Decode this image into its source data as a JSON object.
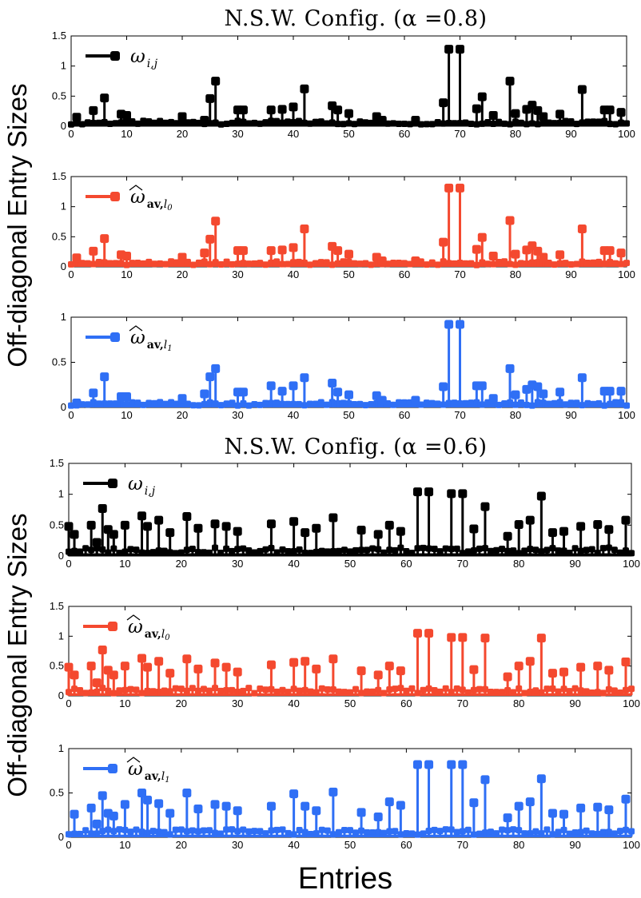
{
  "chart_data": [
    {
      "type": "stem",
      "title": "N.S.W. Config. (α =0.8)",
      "ylabel": "Off-diagonal Entry Sizes",
      "panels": [
        {
          "legend": {
            "base": "ω",
            "sub": "i,j",
            "hat": false,
            "bold": ""
          },
          "color": "#000000",
          "ylim": [
            0,
            1.5
          ],
          "yticks": [
            "0",
            "0.5",
            "1",
            "1.5"
          ],
          "ytick_values": [
            0,
            0.5,
            1,
            1.5
          ],
          "peaks": [
            [
              1,
              0.15
            ],
            [
              4,
              0.26
            ],
            [
              6,
              0.47
            ],
            [
              9,
              0.2
            ],
            [
              10,
              0.18
            ],
            [
              20,
              0.16
            ],
            [
              24,
              0.1
            ],
            [
              25,
              0.46
            ],
            [
              26,
              0.75
            ],
            [
              30,
              0.27
            ],
            [
              31,
              0.27
            ],
            [
              36,
              0.27
            ],
            [
              38,
              0.28
            ],
            [
              40,
              0.32
            ],
            [
              42,
              0.62
            ],
            [
              47,
              0.34
            ],
            [
              48,
              0.27
            ],
            [
              50,
              0.21
            ],
            [
              55,
              0.16
            ],
            [
              56,
              0.1
            ],
            [
              62,
              0.1
            ],
            [
              67,
              0.39
            ],
            [
              68,
              1.28
            ],
            [
              70,
              1.28
            ],
            [
              73,
              0.29
            ],
            [
              74,
              0.49
            ],
            [
              76,
              0.18
            ],
            [
              79,
              0.75
            ],
            [
              80,
              0.21
            ],
            [
              82,
              0.28
            ],
            [
              83,
              0.35
            ],
            [
              84,
              0.26
            ],
            [
              85,
              0.16
            ],
            [
              88,
              0.2
            ],
            [
              92,
              0.61
            ],
            [
              96,
              0.27
            ],
            [
              97,
              0.27
            ],
            [
              99,
              0.23
            ]
          ]
        },
        {
          "legend": {
            "base": "ω",
            "sub": "l0",
            "hat": true,
            "bold": "av"
          },
          "color": "#f4492f",
          "ylim": [
            0,
            1.5
          ],
          "yticks": [
            "0",
            "0.5",
            "1",
            "1.5"
          ],
          "ytick_values": [
            0,
            0.5,
            1,
            1.5
          ],
          "peaks": [
            [
              1,
              0.15
            ],
            [
              4,
              0.26
            ],
            [
              6,
              0.47
            ],
            [
              9,
              0.2
            ],
            [
              10,
              0.18
            ],
            [
              20,
              0.16
            ],
            [
              24,
              0.23
            ],
            [
              25,
              0.46
            ],
            [
              26,
              0.76
            ],
            [
              30,
              0.27
            ],
            [
              31,
              0.27
            ],
            [
              36,
              0.27
            ],
            [
              38,
              0.28
            ],
            [
              40,
              0.32
            ],
            [
              42,
              0.63
            ],
            [
              47,
              0.34
            ],
            [
              48,
              0.27
            ],
            [
              50,
              0.21
            ],
            [
              55,
              0.16
            ],
            [
              56,
              0.1
            ],
            [
              62,
              0.1
            ],
            [
              67,
              0.41
            ],
            [
              68,
              1.31
            ],
            [
              70,
              1.31
            ],
            [
              73,
              0.29
            ],
            [
              74,
              0.49
            ],
            [
              76,
              0.18
            ],
            [
              79,
              0.77
            ],
            [
              80,
              0.21
            ],
            [
              82,
              0.28
            ],
            [
              83,
              0.35
            ],
            [
              84,
              0.26
            ],
            [
              85,
              0.16
            ],
            [
              88,
              0.2
            ],
            [
              92,
              0.63
            ],
            [
              96,
              0.27
            ],
            [
              97,
              0.27
            ],
            [
              99,
              0.23
            ]
          ]
        },
        {
          "legend": {
            "base": "ω",
            "sub": "l1",
            "hat": true,
            "bold": "av"
          },
          "color": "#2f6ff5",
          "ylim": [
            0,
            1
          ],
          "yticks": [
            "0",
            "0.5",
            "1"
          ],
          "ytick_values": [
            0,
            0.5,
            1
          ],
          "peaks": [
            [
              1,
              0.05
            ],
            [
              4,
              0.16
            ],
            [
              6,
              0.34
            ],
            [
              9,
              0.12
            ],
            [
              10,
              0.12
            ],
            [
              20,
              0.1
            ],
            [
              24,
              0.15
            ],
            [
              25,
              0.34
            ],
            [
              26,
              0.43
            ],
            [
              30,
              0.17
            ],
            [
              31,
              0.17
            ],
            [
              36,
              0.24
            ],
            [
              38,
              0.18
            ],
            [
              40,
              0.24
            ],
            [
              42,
              0.33
            ],
            [
              47,
              0.27
            ],
            [
              48,
              0.17
            ],
            [
              50,
              0.14
            ],
            [
              55,
              0.13
            ],
            [
              56,
              0.08
            ],
            [
              62,
              0.08
            ],
            [
              67,
              0.23
            ],
            [
              68,
              0.92
            ],
            [
              70,
              0.92
            ],
            [
              73,
              0.24
            ],
            [
              74,
              0.24
            ],
            [
              76,
              0.1
            ],
            [
              79,
              0.43
            ],
            [
              80,
              0.14
            ],
            [
              82,
              0.2
            ],
            [
              83,
              0.25
            ],
            [
              84,
              0.23
            ],
            [
              85,
              0.15
            ],
            [
              88,
              0.17
            ],
            [
              92,
              0.33
            ],
            [
              96,
              0.18
            ],
            [
              97,
              0.18
            ],
            [
              99,
              0.18
            ]
          ]
        }
      ]
    },
    {
      "type": "stem",
      "title": "N.S.W. Config. (α =0.6)",
      "ylabel": "Off-diagonal Entry Sizes",
      "panels": [
        {
          "legend": {
            "base": "ω",
            "sub": "i,j",
            "hat": false,
            "bold": ""
          },
          "color": "#000000",
          "ylim": [
            0,
            1.5
          ],
          "yticks": [
            "0",
            "0.5",
            "1",
            "1.5"
          ],
          "ytick_values": [
            0,
            0.5,
            1,
            1.5
          ],
          "peaks": [
            [
              0,
              0.48
            ],
            [
              1,
              0.35
            ],
            [
              4,
              0.5
            ],
            [
              5,
              0.22
            ],
            [
              6,
              0.77
            ],
            [
              7,
              0.43
            ],
            [
              8,
              0.35
            ],
            [
              10,
              0.5
            ],
            [
              13,
              0.65
            ],
            [
              14,
              0.48
            ],
            [
              16,
              0.58
            ],
            [
              18,
              0.38
            ],
            [
              21,
              0.64
            ],
            [
              23,
              0.45
            ],
            [
              26,
              0.52
            ],
            [
              28,
              0.48
            ],
            [
              30,
              0.4
            ],
            [
              36,
              0.52
            ],
            [
              40,
              0.56
            ],
            [
              42,
              0.38
            ],
            [
              44,
              0.45
            ],
            [
              47,
              0.62
            ],
            [
              52,
              0.42
            ],
            [
              55,
              0.35
            ],
            [
              57,
              0.5
            ],
            [
              59,
              0.4
            ],
            [
              62,
              1.04
            ],
            [
              64,
              1.04
            ],
            [
              68,
              1.01
            ],
            [
              70,
              1.01
            ],
            [
              72,
              0.44
            ],
            [
              74,
              0.8
            ],
            [
              78,
              0.32
            ],
            [
              80,
              0.51
            ],
            [
              82,
              0.58
            ],
            [
              84,
              0.97
            ],
            [
              86,
              0.38
            ],
            [
              88,
              0.4
            ],
            [
              91,
              0.48
            ],
            [
              94,
              0.51
            ],
            [
              96,
              0.43
            ],
            [
              99,
              0.58
            ]
          ]
        },
        {
          "legend": {
            "base": "ω",
            "sub": "l0",
            "hat": true,
            "bold": "av"
          },
          "color": "#f4492f",
          "ylim": [
            0,
            1.5
          ],
          "yticks": [
            "0",
            "0.5",
            "1",
            "1.5"
          ],
          "ytick_values": [
            0,
            0.5,
            1,
            1.5
          ],
          "peaks": [
            [
              0,
              0.48
            ],
            [
              1,
              0.35
            ],
            [
              4,
              0.5
            ],
            [
              5,
              0.22
            ],
            [
              6,
              0.77
            ],
            [
              7,
              0.43
            ],
            [
              8,
              0.35
            ],
            [
              10,
              0.5
            ],
            [
              13,
              0.63
            ],
            [
              14,
              0.48
            ],
            [
              16,
              0.58
            ],
            [
              18,
              0.38
            ],
            [
              21,
              0.62
            ],
            [
              23,
              0.45
            ],
            [
              26,
              0.55
            ],
            [
              28,
              0.48
            ],
            [
              30,
              0.4
            ],
            [
              36,
              0.52
            ],
            [
              40,
              0.56
            ],
            [
              42,
              0.58
            ],
            [
              44,
              0.45
            ],
            [
              47,
              0.62
            ],
            [
              52,
              0.42
            ],
            [
              55,
              0.35
            ],
            [
              57,
              0.5
            ],
            [
              59,
              0.42
            ],
            [
              62,
              1.05
            ],
            [
              64,
              1.05
            ],
            [
              68,
              0.98
            ],
            [
              70,
              0.98
            ],
            [
              72,
              0.44
            ],
            [
              74,
              0.97
            ],
            [
              78,
              0.32
            ],
            [
              80,
              0.5
            ],
            [
              82,
              0.58
            ],
            [
              84,
              0.97
            ],
            [
              86,
              0.38
            ],
            [
              88,
              0.4
            ],
            [
              91,
              0.48
            ],
            [
              94,
              0.5
            ],
            [
              96,
              0.43
            ],
            [
              99,
              0.57
            ]
          ]
        },
        {
          "legend": {
            "base": "ω",
            "sub": "l1",
            "hat": true,
            "bold": "av"
          },
          "color": "#2f6ff5",
          "ylim": [
            0,
            1
          ],
          "yticks": [
            "0",
            "0.5",
            "1"
          ],
          "ytick_values": [
            0,
            0.5,
            1
          ],
          "peaks": [
            [
              1,
              0.26
            ],
            [
              4,
              0.33
            ],
            [
              5,
              0.15
            ],
            [
              6,
              0.47
            ],
            [
              7,
              0.27
            ],
            [
              8,
              0.24
            ],
            [
              10,
              0.37
            ],
            [
              13,
              0.5
            ],
            [
              14,
              0.42
            ],
            [
              16,
              0.38
            ],
            [
              18,
              0.27
            ],
            [
              21,
              0.5
            ],
            [
              23,
              0.32
            ],
            [
              26,
              0.37
            ],
            [
              28,
              0.35
            ],
            [
              30,
              0.3
            ],
            [
              36,
              0.35
            ],
            [
              40,
              0.49
            ],
            [
              42,
              0.35
            ],
            [
              44,
              0.3
            ],
            [
              47,
              0.51
            ],
            [
              52,
              0.28
            ],
            [
              55,
              0.23
            ],
            [
              57,
              0.4
            ],
            [
              59,
              0.36
            ],
            [
              62,
              0.82
            ],
            [
              64,
              0.82
            ],
            [
              68,
              0.82
            ],
            [
              70,
              0.82
            ],
            [
              72,
              0.39
            ],
            [
              74,
              0.65
            ],
            [
              78,
              0.22
            ],
            [
              80,
              0.35
            ],
            [
              82,
              0.4
            ],
            [
              84,
              0.66
            ],
            [
              86,
              0.27
            ],
            [
              88,
              0.26
            ],
            [
              91,
              0.33
            ],
            [
              94,
              0.34
            ],
            [
              96,
              0.31
            ],
            [
              99,
              0.43
            ]
          ]
        }
      ]
    }
  ],
  "xlabel": "Entries",
  "xlim": [
    0,
    100
  ],
  "xticks": [
    "0",
    "10",
    "20",
    "30",
    "40",
    "50",
    "60",
    "70",
    "80",
    "90",
    "100"
  ],
  "xtick_values": [
    0,
    10,
    20,
    30,
    40,
    50,
    60,
    70,
    80,
    90,
    100
  ]
}
